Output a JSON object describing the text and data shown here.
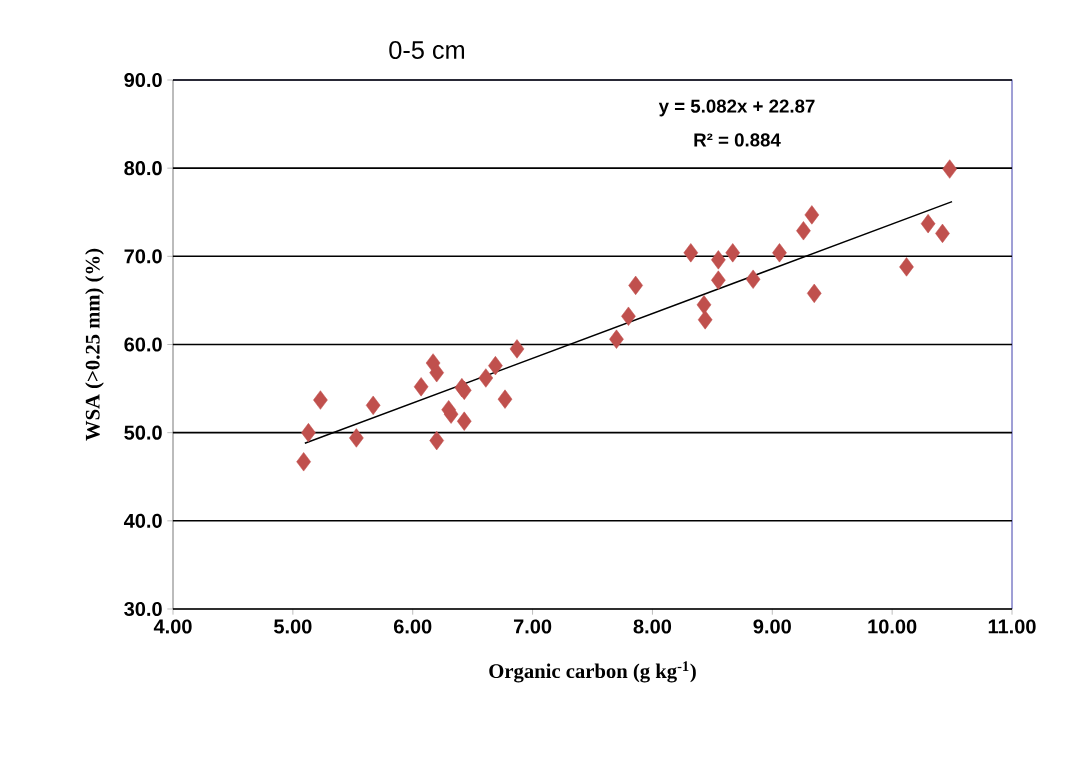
{
  "chart_data": {
    "type": "scatter",
    "title": "0-5 cm",
    "xlabel": "Organic carbon (g kg$^{-1}$)",
    "ylabel": "WSA (>0.25 mm) (%)",
    "annotations": [
      "y = 5.082x + 22.87",
      "R² = 0.884"
    ],
    "xlim": [
      4,
      11
    ],
    "ylim": [
      30,
      90
    ],
    "xticks": [
      {
        "value": 4,
        "label": "4.00"
      },
      {
        "value": 5,
        "label": "5.00"
      },
      {
        "value": 6,
        "label": "6.00"
      },
      {
        "value": 7,
        "label": "7.00"
      },
      {
        "value": 8,
        "label": "8.00"
      },
      {
        "value": 9,
        "label": "9.00"
      },
      {
        "value": 10,
        "label": "10.00"
      },
      {
        "value": 11,
        "label": "11.00"
      }
    ],
    "yticks": [
      {
        "value": 30,
        "label": "30.0"
      },
      {
        "value": 40,
        "label": "40.0"
      },
      {
        "value": 50,
        "label": "50.0"
      },
      {
        "value": 60,
        "label": "60.0"
      },
      {
        "value": 70,
        "label": "70.0"
      },
      {
        "value": 80,
        "label": "80.0"
      },
      {
        "value": 90,
        "label": "90.0"
      }
    ],
    "grid": "y",
    "marker": "diamond",
    "series": [
      {
        "color": "#c0504d",
        "x": [
          5.09,
          5.13,
          5.23,
          5.53,
          5.67,
          6.07,
          6.17,
          6.2,
          6.2,
          6.3,
          6.32,
          6.41,
          6.43,
          6.43,
          6.61,
          6.69,
          6.77,
          6.87,
          7.7,
          7.8,
          7.86,
          8.32,
          8.43,
          8.44,
          8.55,
          8.55,
          8.67,
          8.84,
          9.06,
          9.26,
          9.33,
          9.35,
          10.12,
          10.3,
          10.42,
          10.48
        ],
        "values": [
          46.7,
          50.0,
          53.7,
          49.4,
          53.1,
          55.2,
          57.9,
          56.8,
          49.1,
          52.6,
          52.1,
          55.1,
          54.8,
          51.3,
          56.2,
          57.6,
          53.8,
          59.5,
          60.6,
          63.2,
          66.7,
          70.4,
          64.5,
          62.8,
          67.3,
          69.6,
          70.4,
          67.4,
          70.4,
          72.9,
          74.7,
          65.8,
          68.8,
          73.7,
          72.6,
          79.9
        ]
      },
      {
        "type": "line",
        "color": "#000000",
        "marker": "none",
        "x": [
          5.1,
          10.5
        ],
        "values": [
          48.8,
          76.2
        ]
      }
    ]
  }
}
